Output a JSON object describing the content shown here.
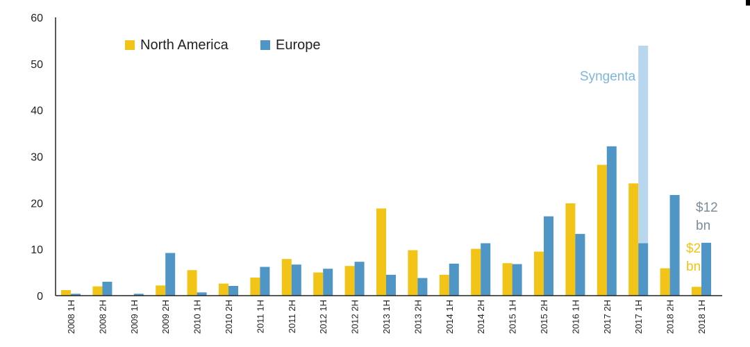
{
  "chart_data": {
    "type": "bar",
    "categories": [
      "2008 1H",
      "2008 2H",
      "2009 1H",
      "2009 2H",
      "2010 1H",
      "2010 2H",
      "2011 1H",
      "2011 2H",
      "2012 1H",
      "2012 2H",
      "2013 1H",
      "2013 2H",
      "2014 1H",
      "2014 2H",
      "2015 1H",
      "2015 2H",
      "2016 1H",
      "2017 2H",
      "2017 1H",
      "2018 2H",
      "2018 1H"
    ],
    "series": [
      {
        "name": "North America",
        "color": "#f2c417",
        "values": [
          1.2,
          2.0,
          0.1,
          2.2,
          5.5,
          2.6,
          3.9,
          7.9,
          5.0,
          6.4,
          18.8,
          9.8,
          4.5,
          10.1,
          7.0,
          9.5,
          19.9,
          28.2,
          24.2,
          5.9,
          1.9
        ]
      },
      {
        "name": "Europe",
        "color": "#4f95c6",
        "values": [
          0.4,
          3.0,
          0.4,
          9.2,
          0.7,
          2.1,
          6.2,
          6.7,
          5.8,
          7.3,
          4.5,
          3.8,
          6.9,
          11.3,
          6.8,
          17.1,
          13.3,
          32.2,
          11.3,
          21.7,
          11.4
        ]
      }
    ],
    "overlay": {
      "category_index": 18,
      "from": 11.3,
      "to": 53.9,
      "color": "#b8d6ee",
      "label": "Syngenta",
      "label_color": "#7fb5d9"
    },
    "annotations": [
      {
        "lines": [
          "$12",
          "bn"
        ],
        "color": "#7c8c98"
      },
      {
        "lines": [
          "$2",
          "bn"
        ],
        "color": "#f2c417"
      }
    ],
    "yticks": [
      0,
      10,
      20,
      30,
      40,
      50,
      60
    ],
    "ylim": [
      0,
      60
    ],
    "legend_position": "top-left",
    "grid": false
  }
}
